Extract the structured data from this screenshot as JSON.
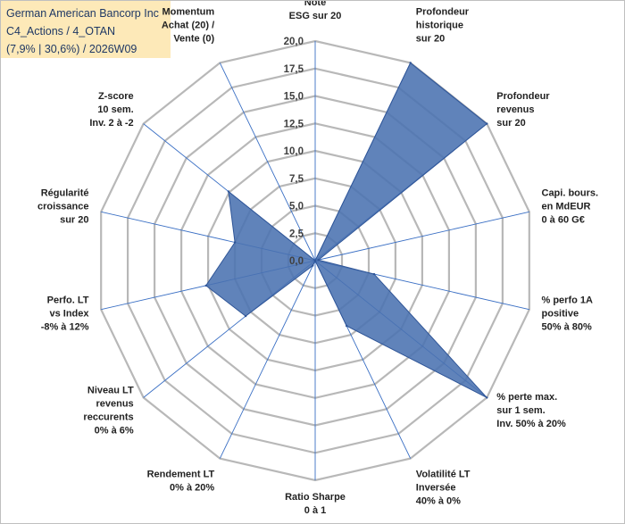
{
  "header": {
    "line1": "German American Bancorp Inc",
    "line2": "C4_Actions / 4_OTAN",
    "line3": "(7,9% | 30,6%) / 2026W09"
  },
  "colors": {
    "fill": "#4a72b0",
    "stroke": "#2f5597",
    "grid": "#b8b8b8",
    "spoke": "#3a6fc4",
    "header_bg": "#fde9b8"
  },
  "chart_data": {
    "type": "radar",
    "title": "",
    "rmax": 20,
    "ticks": [
      "0,0",
      "2,5",
      "5,0",
      "7,5",
      "10,0",
      "12,5",
      "15,0",
      "17,5",
      "20,0"
    ],
    "grid": true,
    "legend": "none",
    "axes": [
      {
        "label": [
          "Note",
          "ESG sur 20"
        ],
        "value": 0
      },
      {
        "label": [
          "Profondeur",
          "historique",
          "sur 20"
        ],
        "value": 20
      },
      {
        "label": [
          "Profondeur",
          "revenus",
          "sur 20"
        ],
        "value": 20
      },
      {
        "label": [
          "Capi. bours.",
          "en MdEUR",
          "0 à 60 G€"
        ],
        "value": 0.3
      },
      {
        "label": [
          "% perfo 1A",
          "positive",
          "50% à 80%"
        ],
        "value": 5.5
      },
      {
        "label": [
          "% perte max.",
          "sur 1 sem.",
          "Inv. 50% à 20%"
        ],
        "value": 20
      },
      {
        "label": [
          "Volatilité LT",
          "Inversée",
          "40% à 0%"
        ],
        "value": 6.6
      },
      {
        "label": [
          "Ratio Sharpe",
          "0 à 1"
        ],
        "value": 0
      },
      {
        "label": [
          "Rendement LT",
          "0% à 20%"
        ],
        "value": 0.5
      },
      {
        "label": [
          "Niveau LT",
          "revenus",
          "reccurents",
          "0% à 6%"
        ],
        "value": 8.1
      },
      {
        "label": [
          "Perfo. LT",
          "vs Index",
          "-8% à 12%"
        ],
        "value": 10.2
      },
      {
        "label": [
          "Régularité",
          "croissance",
          "sur 20"
        ],
        "value": 7.5
      },
      {
        "label": [
          "Z-score",
          "10 sem.",
          "Inv. 2 à -2"
        ],
        "value": 10.1
      },
      {
        "label": [
          "Momentum",
          "Achat (20) /",
          "Vente (0)"
        ],
        "value": 0
      }
    ]
  }
}
